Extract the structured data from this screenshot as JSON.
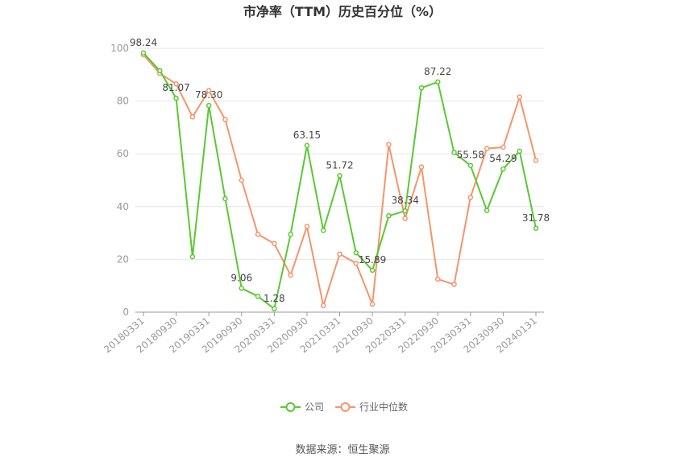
{
  "colors": {
    "company": "#5ac832",
    "industry": "#f4956a",
    "grid": "#e6e6e6",
    "axis": "#999999",
    "tick_text": "#999999",
    "title": "#333333",
    "label": "#444444"
  },
  "chart_data": {
    "type": "line",
    "title": "市净率（TTM）历史百分位（%）",
    "source": "数据来源：恒生聚源",
    "ylim": [
      0,
      100
    ],
    "yticks": [
      0,
      20,
      40,
      60,
      80,
      100
    ],
    "grid": true,
    "legend_position": "bottom-center",
    "x_tick_labels": [
      "20180331",
      "20180930",
      "20190331",
      "20190930",
      "20200331",
      "20200930",
      "20210331",
      "20210930",
      "20220331",
      "20220930",
      "20230331",
      "20230930",
      "20240131"
    ],
    "x": [
      "20180331",
      "20180630",
      "20180930",
      "20181231",
      "20190331",
      "20190630",
      "20190930",
      "20191231",
      "20200331",
      "20200630",
      "20200930",
      "20201231",
      "20210331",
      "20210630",
      "20210930",
      "20211231",
      "20220331",
      "20220630",
      "20220930",
      "20221231",
      "20230331",
      "20230630",
      "20230930",
      "20231231",
      "20240131"
    ],
    "series": [
      {
        "name": "公司",
        "color_key": "company",
        "values": [
          98.24,
          91.5,
          81.07,
          21.0,
          78.3,
          43.0,
          9.06,
          6.0,
          1.28,
          29.5,
          63.15,
          31.0,
          51.72,
          22.5,
          15.89,
          36.5,
          38.34,
          85.0,
          87.22,
          60.5,
          55.58,
          38.5,
          54.29,
          61.0,
          31.78
        ],
        "labeled_indices": [
          0,
          2,
          4,
          6,
          8,
          10,
          12,
          14,
          16,
          18,
          20,
          22,
          24
        ]
      },
      {
        "name": "行业中位数",
        "color_key": "industry",
        "values": [
          97.5,
          90.5,
          86.5,
          74.0,
          84.0,
          73.0,
          50.0,
          29.5,
          26.0,
          14.0,
          32.5,
          2.5,
          22.0,
          18.5,
          3.0,
          63.5,
          35.5,
          55.0,
          12.5,
          10.5,
          43.5,
          62.0,
          62.5,
          81.5,
          57.5
        ],
        "labeled_indices": []
      }
    ]
  }
}
